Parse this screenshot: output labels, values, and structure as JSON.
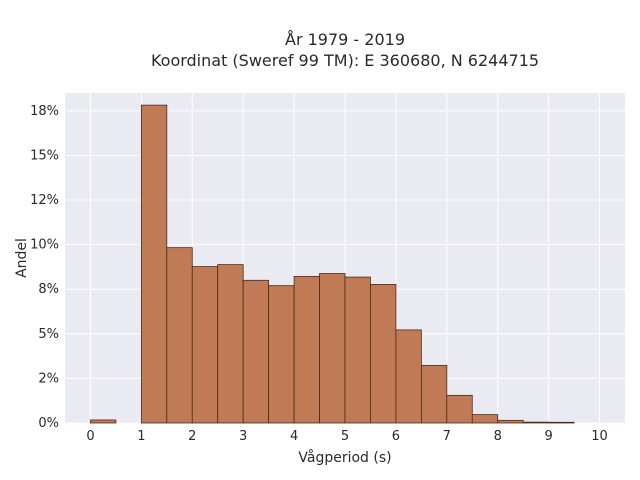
{
  "chart_data": {
    "type": "bar",
    "title_line1": "År 1979 - 2019",
    "title_line2": "Koordinat (Sweref 99 TM): E 360680, N 6244715",
    "xlabel": "Vågperiod (s)",
    "ylabel": "Andel",
    "xlim": [
      -0.5,
      10.5
    ],
    "ylim": [
      0,
      0.185
    ],
    "x_ticks": [
      0,
      1,
      2,
      3,
      4,
      5,
      6,
      7,
      8,
      9,
      10
    ],
    "x_tick_labels": [
      "0",
      "1",
      "2",
      "3",
      "4",
      "5",
      "6",
      "7",
      "8",
      "9",
      "10"
    ],
    "y_ticks": [
      0,
      0.025,
      0.05,
      0.075,
      0.1,
      0.125,
      0.15,
      0.175
    ],
    "y_tick_labels": [
      "0%",
      "2%",
      "5%",
      "8%",
      "10%",
      "12%",
      "15%",
      "18%"
    ],
    "grid": true,
    "bin_width": 0.5,
    "bin_starts": [
      0,
      0.5,
      1,
      1.5,
      2,
      2.5,
      3,
      3.5,
      4,
      4.5,
      5,
      5.5,
      6,
      6.5,
      7,
      7.5,
      8,
      8.5,
      9,
      9.5
    ],
    "values": [
      0.0017,
      0,
      0.1782,
      0.0983,
      0.0877,
      0.0888,
      0.08,
      0.077,
      0.0822,
      0.0838,
      0.0818,
      0.0777,
      0.0522,
      0.0323,
      0.0155,
      0.0047,
      0.0015,
      0.0005,
      0.0004,
      0
    ],
    "colors": {
      "bar_fill": "#c07a55",
      "bar_edge": "#4a2c1c",
      "plot_bg": "#eaeaf2",
      "grid": "#ffffff",
      "text": "#2a2a2a"
    }
  }
}
